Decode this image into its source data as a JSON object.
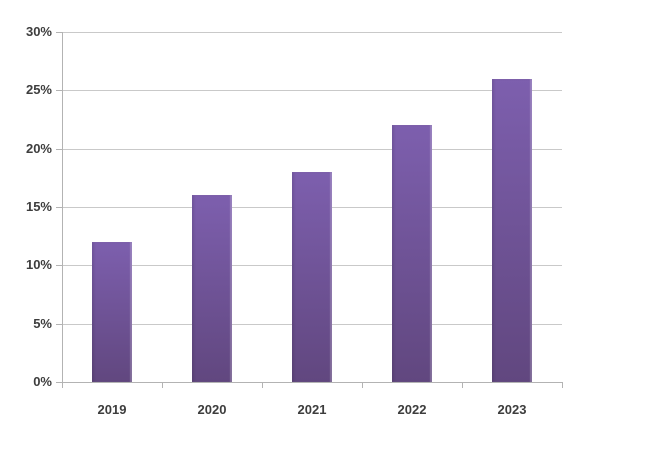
{
  "chart_data": {
    "type": "bar",
    "title": "",
    "xlabel": "",
    "ylabel": "",
    "categories": [
      "2019",
      "2020",
      "2021",
      "2022",
      "2023"
    ],
    "values": [
      12,
      16,
      18,
      22,
      26
    ],
    "ylim": [
      0,
      30
    ],
    "ytick_step": 5,
    "ytick_labels": [
      "0%",
      "5%",
      "10%",
      "15%",
      "20%",
      "25%",
      "30%"
    ],
    "grid": true,
    "legend": false,
    "colors": {
      "bar_gradient_top": "#7d5fae",
      "bar_gradient_bottom": "#61477f",
      "gridline": "#c9c9c9",
      "axis": "#b3b3b3",
      "label": "#3d3d3d",
      "background": "#ffffff"
    }
  }
}
